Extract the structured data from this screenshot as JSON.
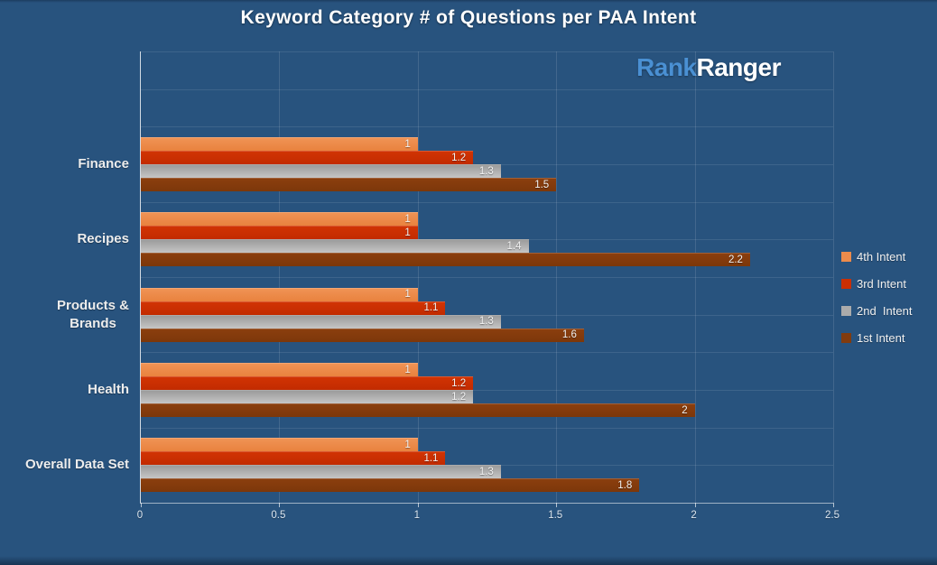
{
  "title": "Keyword Category # of Questions per PAA Intent",
  "logo": {
    "rank": "Rank",
    "ranger": "Ranger",
    "rank_color": "#4A90D3",
    "ranger_color": "#FFFFFF"
  },
  "colors": {
    "background": "#28537E",
    "axis_line": "#FFFFFF",
    "tick_label": "#DCE6F0",
    "category_label": "#EDEDED",
    "value_label": "#F2F2F2",
    "legend_label": "#F0F0F0"
  },
  "chart_data": {
    "type": "bar",
    "orientation": "horizontal",
    "title": "Keyword Category # of Questions per PAA Intent",
    "categories": [
      "Finance",
      "Recipes",
      "Products & Brands",
      "Health",
      "Overall Data Set"
    ],
    "category_display": [
      "Finance",
      "Recipes",
      "Products &\nBrands",
      "Health",
      "Overall Data Set"
    ],
    "series": [
      {
        "name": "4th Intent",
        "color": "#EC8B4B",
        "color_top": "#F09456",
        "color_bottom": "#E9823E",
        "values": [
          1,
          1,
          1,
          1,
          1
        ]
      },
      {
        "name": "3rd Intent",
        "color": "#CB2F03",
        "color_top": "#D23404",
        "color_bottom": "#C22B00",
        "values": [
          1.2,
          1,
          1.1,
          1.2,
          1.1
        ]
      },
      {
        "name": "2nd  Intent",
        "color": "#ABABAB",
        "color_top": "#999999",
        "color_bottom": "#C6C6C6",
        "values": [
          1.3,
          1.4,
          1.3,
          1.2,
          1.3
        ]
      },
      {
        "name": "1st Intent",
        "color": "#813B0E",
        "color_top": "#8C3F0E",
        "color_bottom": "#7C370A",
        "values": [
          1.5,
          2.2,
          1.6,
          2,
          1.8
        ]
      }
    ],
    "x_ticks": [
      0,
      0.5,
      1,
      1.5,
      2,
      2.5
    ],
    "xlim": [
      0,
      2.5
    ],
    "grid": true,
    "legend_position": "right",
    "value_labels": true
  }
}
